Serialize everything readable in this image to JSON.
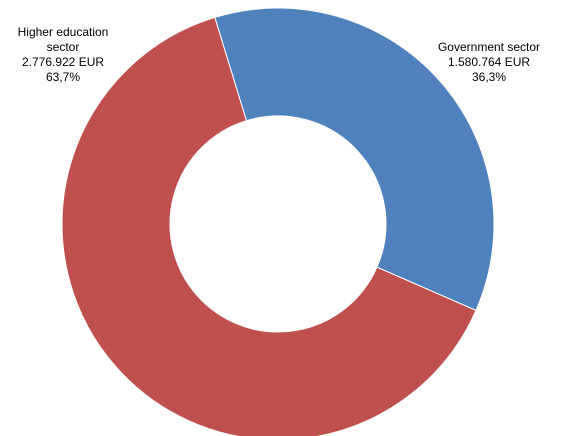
{
  "chart_data": {
    "type": "pie",
    "donut": true,
    "legend": "none",
    "slices": [
      {
        "name_lines": [
          "Government sector"
        ],
        "value": 1580764,
        "value_text": "1.580.764 EUR",
        "percent": 36.3,
        "percent_text": "36,3%",
        "color": "#4F81BD"
      },
      {
        "name_lines": [
          "Higher education",
          "sector"
        ],
        "value": 2776922,
        "value_text": "2.776.922 EUR",
        "percent": 63.7,
        "percent_text": "63,7%",
        "color": "#C0504D"
      }
    ]
  }
}
